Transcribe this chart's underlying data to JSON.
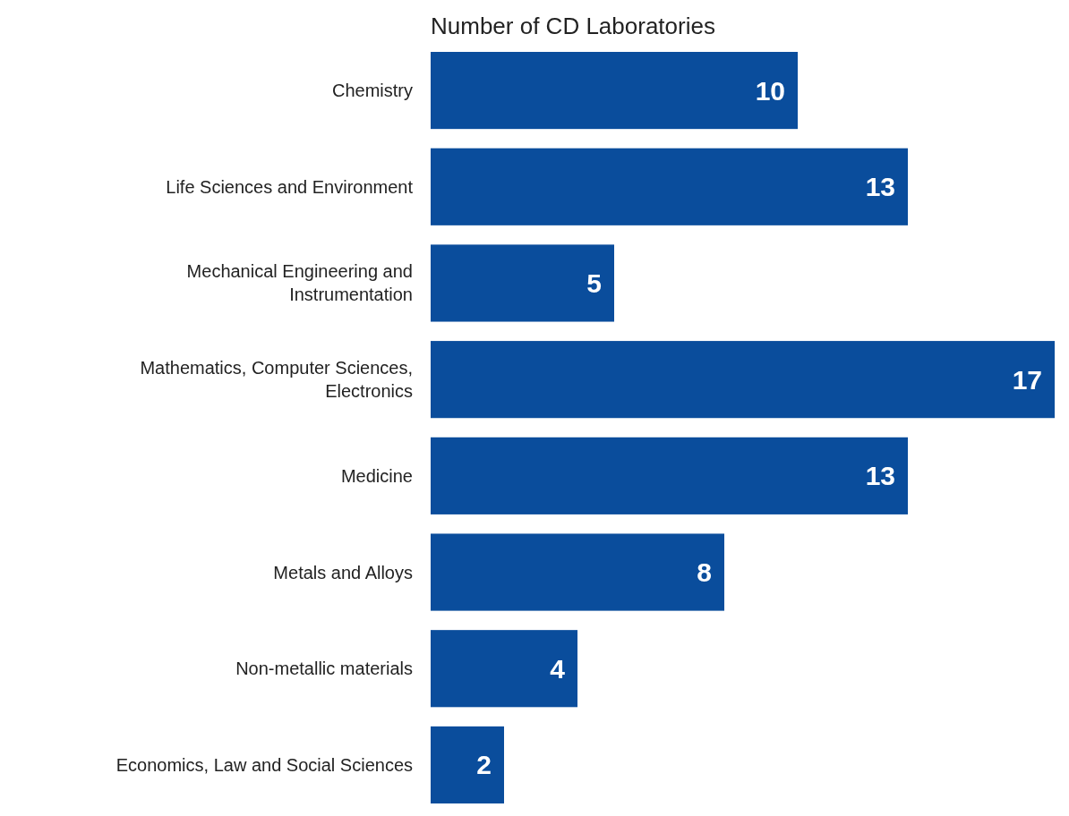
{
  "chart_data": {
    "type": "bar",
    "orientation": "horizontal",
    "title": "Number of CD Laboratories",
    "categories": [
      "Chemistry",
      "Life Sciences and Environment",
      "Mechanical Engineering and Instrumentation",
      "Mathematics, Computer Sciences, Electronics",
      "Medicine",
      "Metals and Alloys",
      "Non-metallic materials",
      "Economics, Law and Social Sciences"
    ],
    "values": [
      10,
      13,
      5,
      17,
      13,
      8,
      4,
      2
    ],
    "color": "#0a4d9c",
    "data_labels": true
  }
}
